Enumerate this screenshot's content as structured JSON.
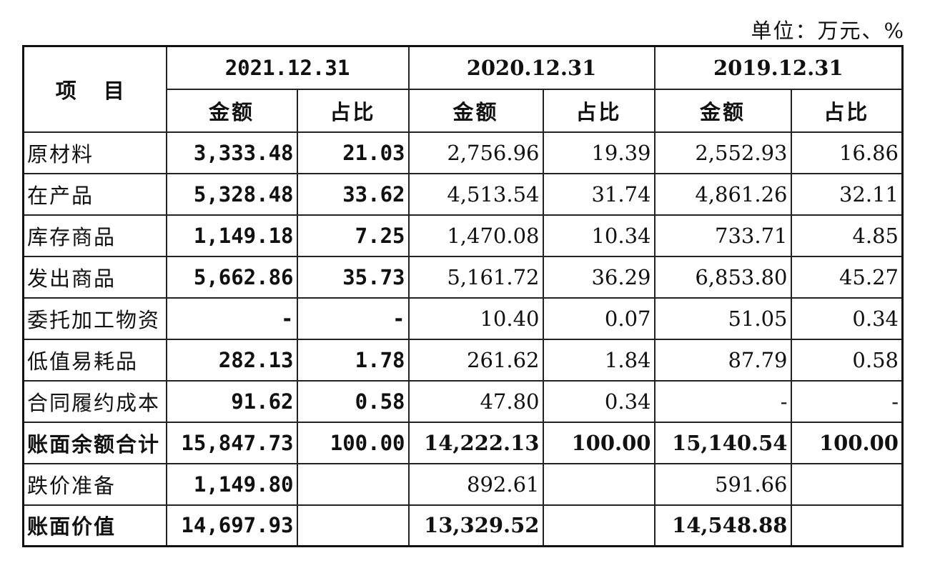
{
  "unit_note": "单位：万元、%",
  "headers": {
    "item": "项 目",
    "years": [
      "2021.12.31",
      "2020.12.31",
      "2019.12.31"
    ],
    "amount": "金额",
    "ratio": "占比"
  },
  "rows": [
    {
      "label": "原材料",
      "bold": false,
      "v": [
        "3,333.48",
        "21.03",
        "2,756.96",
        "19.39",
        "2,552.93",
        "16.86"
      ]
    },
    {
      "label": "在产品",
      "bold": false,
      "v": [
        "5,328.48",
        "33.62",
        "4,513.54",
        "31.74",
        "4,861.26",
        "32.11"
      ]
    },
    {
      "label": "库存商品",
      "bold": false,
      "v": [
        "1,149.18",
        "7.25",
        "1,470.08",
        "10.34",
        "733.71",
        "4.85"
      ]
    },
    {
      "label": "发出商品",
      "bold": false,
      "v": [
        "5,662.86",
        "35.73",
        "5,161.72",
        "36.29",
        "6,853.80",
        "45.27"
      ]
    },
    {
      "label": "委托加工物资",
      "bold": false,
      "v": [
        "-",
        "-",
        "10.40",
        "0.07",
        "51.05",
        "0.34"
      ]
    },
    {
      "label": "低值易耗品",
      "bold": false,
      "v": [
        "282.13",
        "1.78",
        "261.62",
        "1.84",
        "87.79",
        "0.58"
      ]
    },
    {
      "label": "合同履约成本",
      "bold": false,
      "v": [
        "91.62",
        "0.58",
        "47.80",
        "0.34",
        "-",
        "-"
      ]
    },
    {
      "label": "账面余额合计",
      "bold": true,
      "v": [
        "15,847.73",
        "100.00",
        "14,222.13",
        "100.00",
        "15,140.54",
        "100.00"
      ]
    },
    {
      "label": "跌价准备",
      "bold": false,
      "v": [
        "1,149.80",
        "",
        "892.61",
        "",
        "591.66",
        ""
      ]
    },
    {
      "label": "账面价值",
      "bold": true,
      "v": [
        "14,697.93",
        "",
        "13,329.52",
        "",
        "14,548.88",
        ""
      ]
    }
  ]
}
